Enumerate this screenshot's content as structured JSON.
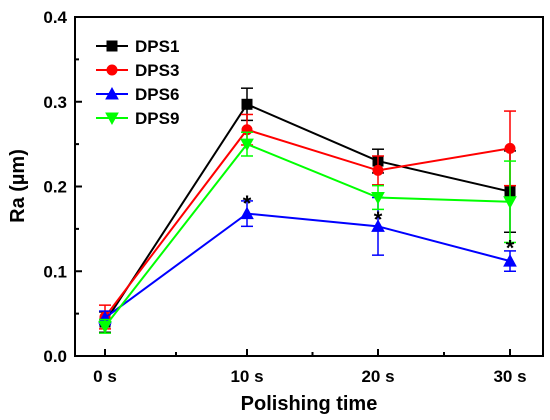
{
  "chart_data": {
    "type": "line",
    "title": "",
    "xlabel": "Polishing time",
    "ylabel": "Ra (µm)",
    "categories": [
      "0 s",
      "10 s",
      "20 s",
      "30 s"
    ],
    "ylim": [
      0.0,
      0.4
    ],
    "yticks": [
      "0.0",
      "0.1",
      "0.2",
      "0.3",
      "0.4"
    ],
    "grid": false,
    "legend_position": "top-left",
    "series": [
      {
        "name": "DPS1",
        "color": "#000000",
        "marker": "square",
        "values": [
          0.04,
          0.297,
          0.23,
          0.194
        ],
        "errors": [
          0.012,
          0.019,
          0.014,
          0.048
        ]
      },
      {
        "name": "DPS3",
        "color": "#ff0000",
        "marker": "circle",
        "values": [
          0.046,
          0.267,
          0.219,
          0.245
        ],
        "errors": [
          0.014,
          0.018,
          0.017,
          0.044
        ]
      },
      {
        "name": "DPS6",
        "color": "#0000ff",
        "marker": "triangle-up",
        "values": [
          0.045,
          0.168,
          0.153,
          0.112
        ],
        "errors": [
          0.008,
          0.015,
          0.034,
          0.012
        ]
      },
      {
        "name": "DPS9",
        "color": "#00ff00",
        "marker": "triangle-down",
        "values": [
          0.035,
          0.25,
          0.187,
          0.182
        ],
        "errors": [
          0.008,
          0.014,
          0.014,
          0.048
        ]
      }
    ],
    "annotations": [
      {
        "text": "*",
        "category": "10 s",
        "value": 0.182
      },
      {
        "text": "*",
        "category": "20 s",
        "value": 0.163
      },
      {
        "text": "*",
        "category": "30 s",
        "value": 0.129
      }
    ]
  }
}
